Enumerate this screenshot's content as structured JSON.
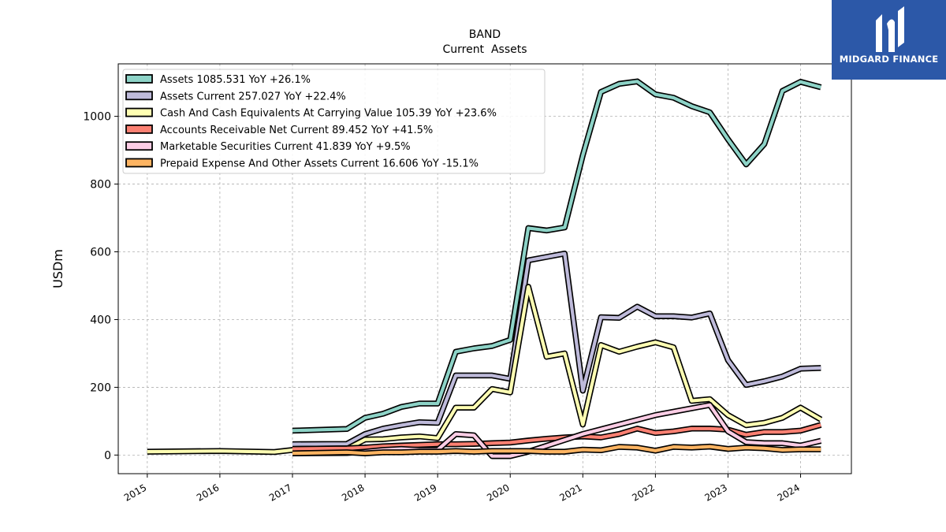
{
  "chart_data": {
    "type": "line",
    "title": "BAND",
    "subtitle": "Current  Assets",
    "ylabel": "USDm",
    "xlabel": "",
    "xlim": [
      2014.6,
      2024.7
    ],
    "ylim": [
      -55,
      1155
    ],
    "x_ticks": [
      "2015",
      "2016",
      "2017",
      "2018",
      "2019",
      "2020",
      "2021",
      "2022",
      "2023",
      "2024"
    ],
    "y_ticks": [
      0,
      200,
      400,
      600,
      800,
      1000
    ],
    "grid": true,
    "legend_position": "top-left",
    "series": [
      {
        "name": "Assets",
        "legend": "Assets  1085.531 YoY +26.1%",
        "color": "#8dd3c7",
        "points": [
          [
            2017.0,
            72
          ],
          [
            2017.75,
            77
          ],
          [
            2018.0,
            110
          ],
          [
            2018.25,
            122
          ],
          [
            2018.5,
            142
          ],
          [
            2018.75,
            152
          ],
          [
            2019.0,
            152
          ],
          [
            2019.25,
            305
          ],
          [
            2019.5,
            315
          ],
          [
            2019.75,
            322
          ],
          [
            2020.0,
            340
          ],
          [
            2020.25,
            670
          ],
          [
            2020.5,
            663
          ],
          [
            2020.75,
            672
          ],
          [
            2021.0,
            885
          ],
          [
            2021.25,
            1072
          ],
          [
            2021.5,
            1096
          ],
          [
            2021.75,
            1103
          ],
          [
            2022.0,
            1065
          ],
          [
            2022.25,
            1055
          ],
          [
            2022.5,
            1030
          ],
          [
            2022.75,
            1012
          ],
          [
            2023.0,
            932
          ],
          [
            2023.25,
            858
          ],
          [
            2023.5,
            918
          ],
          [
            2023.75,
            1075
          ],
          [
            2024.0,
            1102
          ],
          [
            2024.28,
            1086
          ]
        ]
      },
      {
        "name": "Assets Current",
        "legend": "Assets Current  257.027 YoY +22.4%",
        "color": "#bebada",
        "points": [
          [
            2017.0,
            32
          ],
          [
            2017.75,
            33
          ],
          [
            2018.0,
            62
          ],
          [
            2018.25,
            78
          ],
          [
            2018.5,
            88
          ],
          [
            2018.75,
            97
          ],
          [
            2019.0,
            95
          ],
          [
            2019.25,
            235
          ],
          [
            2019.5,
            235
          ],
          [
            2019.75,
            235
          ],
          [
            2020.0,
            225
          ],
          [
            2020.25,
            575
          ],
          [
            2020.5,
            585
          ],
          [
            2020.75,
            595
          ],
          [
            2021.0,
            190
          ],
          [
            2021.25,
            407
          ],
          [
            2021.5,
            405
          ],
          [
            2021.75,
            438
          ],
          [
            2022.0,
            410
          ],
          [
            2022.25,
            410
          ],
          [
            2022.5,
            406
          ],
          [
            2022.75,
            418
          ],
          [
            2023.0,
            280
          ],
          [
            2023.25,
            207
          ],
          [
            2023.5,
            218
          ],
          [
            2023.75,
            232
          ],
          [
            2024.0,
            255
          ],
          [
            2024.28,
            257
          ]
        ]
      },
      {
        "name": "Cash And Cash Equivalents At Carrying Value",
        "legend": "Cash And Cash Equivalents At Carrying Value  105.39 YoY +23.6%",
        "color": "#ffffb3",
        "points": [
          [
            2015.0,
            10
          ],
          [
            2016.0,
            12
          ],
          [
            2016.75,
            9
          ],
          [
            2017.0,
            15
          ],
          [
            2017.75,
            18
          ],
          [
            2018.0,
            46
          ],
          [
            2018.25,
            47
          ],
          [
            2018.5,
            52
          ],
          [
            2018.75,
            55
          ],
          [
            2019.0,
            50
          ],
          [
            2019.25,
            140
          ],
          [
            2019.5,
            140
          ],
          [
            2019.75,
            195
          ],
          [
            2020.0,
            185
          ],
          [
            2020.25,
            497
          ],
          [
            2020.5,
            290
          ],
          [
            2020.75,
            300
          ],
          [
            2021.0,
            90
          ],
          [
            2021.25,
            325
          ],
          [
            2021.5,
            305
          ],
          [
            2021.75,
            320
          ],
          [
            2022.0,
            333
          ],
          [
            2022.25,
            318
          ],
          [
            2022.5,
            160
          ],
          [
            2022.75,
            165
          ],
          [
            2023.0,
            118
          ],
          [
            2023.25,
            88
          ],
          [
            2023.5,
            95
          ],
          [
            2023.75,
            110
          ],
          [
            2024.0,
            140
          ],
          [
            2024.28,
            105
          ]
        ]
      },
      {
        "name": "Accounts Receivable Net Current",
        "legend": "Accounts Receivable Net Current  89.452 YoY +41.5%",
        "color": "#fb8072",
        "points": [
          [
            2017.0,
            18
          ],
          [
            2017.75,
            20
          ],
          [
            2018.0,
            22
          ],
          [
            2018.25,
            26
          ],
          [
            2018.5,
            28
          ],
          [
            2018.75,
            30
          ],
          [
            2019.0,
            32
          ],
          [
            2019.25,
            32
          ],
          [
            2019.5,
            33
          ],
          [
            2019.75,
            35
          ],
          [
            2020.0,
            37
          ],
          [
            2020.25,
            43
          ],
          [
            2020.5,
            48
          ],
          [
            2020.75,
            52
          ],
          [
            2021.0,
            55
          ],
          [
            2021.25,
            52
          ],
          [
            2021.5,
            62
          ],
          [
            2021.75,
            78
          ],
          [
            2022.0,
            65
          ],
          [
            2022.25,
            70
          ],
          [
            2022.5,
            78
          ],
          [
            2022.75,
            78
          ],
          [
            2023.0,
            75
          ],
          [
            2023.25,
            60
          ],
          [
            2023.5,
            68
          ],
          [
            2023.75,
            68
          ],
          [
            2024.0,
            72
          ],
          [
            2024.28,
            89
          ]
        ]
      },
      {
        "name": "Marketable Securities Current",
        "legend": "Marketable Securities Current  41.839 YoY +9.5%",
        "color": "#fccde5",
        "points": [
          [
            2017.0,
            5
          ],
          [
            2017.75,
            6
          ],
          [
            2018.0,
            10
          ],
          [
            2018.25,
            15
          ],
          [
            2018.5,
            18
          ],
          [
            2018.75,
            15
          ],
          [
            2019.0,
            15
          ],
          [
            2019.25,
            62
          ],
          [
            2019.5,
            58
          ],
          [
            2019.75,
            -3
          ],
          [
            2020.0,
            -3
          ],
          [
            2020.25,
            10
          ],
          [
            2021.0,
            62
          ],
          [
            2022.0,
            118
          ],
          [
            2022.5,
            138
          ],
          [
            2022.75,
            148
          ],
          [
            2023.0,
            70
          ],
          [
            2023.25,
            38
          ],
          [
            2023.5,
            35
          ],
          [
            2023.75,
            35
          ],
          [
            2024.0,
            28
          ],
          [
            2024.28,
            42
          ]
        ]
      },
      {
        "name": "Prepaid Expense And Other Assets Current",
        "legend": "Prepaid Expense And Other Assets Current  16.606 YoY -15.1%",
        "color": "#fdb462",
        "points": [
          [
            2017.0,
            5
          ],
          [
            2017.75,
            8
          ],
          [
            2018.0,
            5
          ],
          [
            2018.25,
            8
          ],
          [
            2018.5,
            8
          ],
          [
            2018.75,
            10
          ],
          [
            2019.0,
            10
          ],
          [
            2019.25,
            12
          ],
          [
            2019.5,
            10
          ],
          [
            2019.75,
            12
          ],
          [
            2020.0,
            12
          ],
          [
            2020.25,
            12
          ],
          [
            2020.5,
            10
          ],
          [
            2020.75,
            10
          ],
          [
            2021.0,
            16
          ],
          [
            2021.25,
            14
          ],
          [
            2021.5,
            24
          ],
          [
            2021.75,
            22
          ],
          [
            2022.0,
            13
          ],
          [
            2022.25,
            24
          ],
          [
            2022.5,
            22
          ],
          [
            2022.75,
            25
          ],
          [
            2023.0,
            18
          ],
          [
            2023.25,
            22
          ],
          [
            2023.5,
            20
          ],
          [
            2023.75,
            15
          ],
          [
            2024.0,
            17
          ],
          [
            2024.28,
            17
          ]
        ]
      }
    ]
  },
  "logo": {
    "text": "MIDGARD FINANCE",
    "background": "#2c58a8"
  }
}
